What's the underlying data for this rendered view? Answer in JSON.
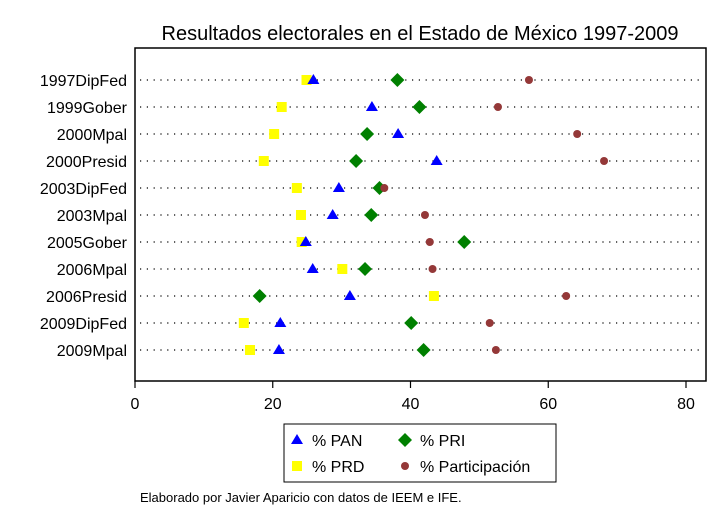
{
  "chart_data": {
    "type": "scatter",
    "title": "Resultados electorales en el Estado de México 1997-2009",
    "xlabel": "",
    "ylabel": "",
    "xlim": [
      0,
      83
    ],
    "xticks": [
      0,
      20,
      40,
      60,
      80
    ],
    "grid": "dotted horizontal per category",
    "categories": [
      "1997DipFed",
      "1999Gober",
      "2000Mpal",
      "2000Presid",
      "2003DipFed",
      "2003Mpal",
      "2005Gober",
      "2006Mpal",
      "2006Presid",
      "2009DipFed",
      "2009Mpal"
    ],
    "series": [
      {
        "name": "% PAN",
        "marker": "triangle",
        "color": "#0000ff",
        "values": [
          25.9,
          34.4,
          38.2,
          43.8,
          29.6,
          28.7,
          24.8,
          25.8,
          31.2,
          21.1,
          20.9
        ]
      },
      {
        "name": "% PRI",
        "marker": "diamond",
        "color": "#008000",
        "values": [
          38.1,
          41.3,
          33.7,
          32.1,
          35.5,
          34.3,
          47.8,
          33.4,
          18.1,
          40.1,
          41.9
        ]
      },
      {
        "name": "% PRD",
        "marker": "square",
        "color": "#ffff00",
        "values": [
          24.9,
          21.3,
          20.2,
          18.7,
          23.5,
          24.1,
          24.2,
          30.1,
          43.4,
          15.8,
          16.7
        ]
      },
      {
        "name": "% Participación",
        "marker": "circle",
        "color": "#943838",
        "values": [
          57.2,
          52.7,
          64.2,
          68.1,
          36.2,
          42.1,
          42.8,
          43.2,
          62.6,
          51.5,
          52.4
        ]
      }
    ],
    "legend_position": "bottom",
    "note": "Elaborado por Javier Aparicio con datos de IEEM e IFE."
  }
}
